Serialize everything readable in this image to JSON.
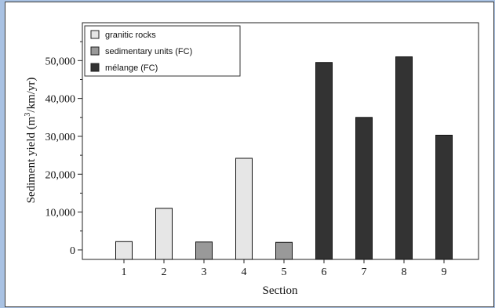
{
  "chart_data": {
    "type": "bar",
    "title": "",
    "xlabel": "Section",
    "ylabel": "Sediment yield (m³/km/yr)",
    "ylabel_parts": {
      "pre": "Sediment yield (m",
      "sup": "3",
      "post": "/km/yr)"
    },
    "categories": [
      "1",
      "2",
      "3",
      "4",
      "5",
      "6",
      "7",
      "8",
      "9"
    ],
    "values": [
      2200,
      11000,
      2100,
      24200,
      2000,
      49500,
      35000,
      51000,
      30300
    ],
    "bar_groups": [
      "granitic rocks",
      "granitic rocks",
      "sedimentary units (FC)",
      "granitic rocks",
      "sedimentary units (FC)",
      "mélange (FC)",
      "mélange (FC)",
      "mélange (FC)",
      "mélange (FC)"
    ],
    "ylim": [
      -2500,
      60000
    ],
    "yticks": [
      0,
      10000,
      20000,
      30000,
      40000,
      50000
    ],
    "ytick_labels": [
      "0",
      "10,000",
      "20,000",
      "30,000",
      "40,000",
      "50,000"
    ],
    "legend": [
      {
        "label": "granitic rocks",
        "color": "#e6e6e6"
      },
      {
        "label": "sedimentary units (FC)",
        "color": "#999999"
      },
      {
        "label": "mélange (FC)",
        "color": "#333333"
      }
    ],
    "legend_position": "top-left",
    "grid": false
  }
}
